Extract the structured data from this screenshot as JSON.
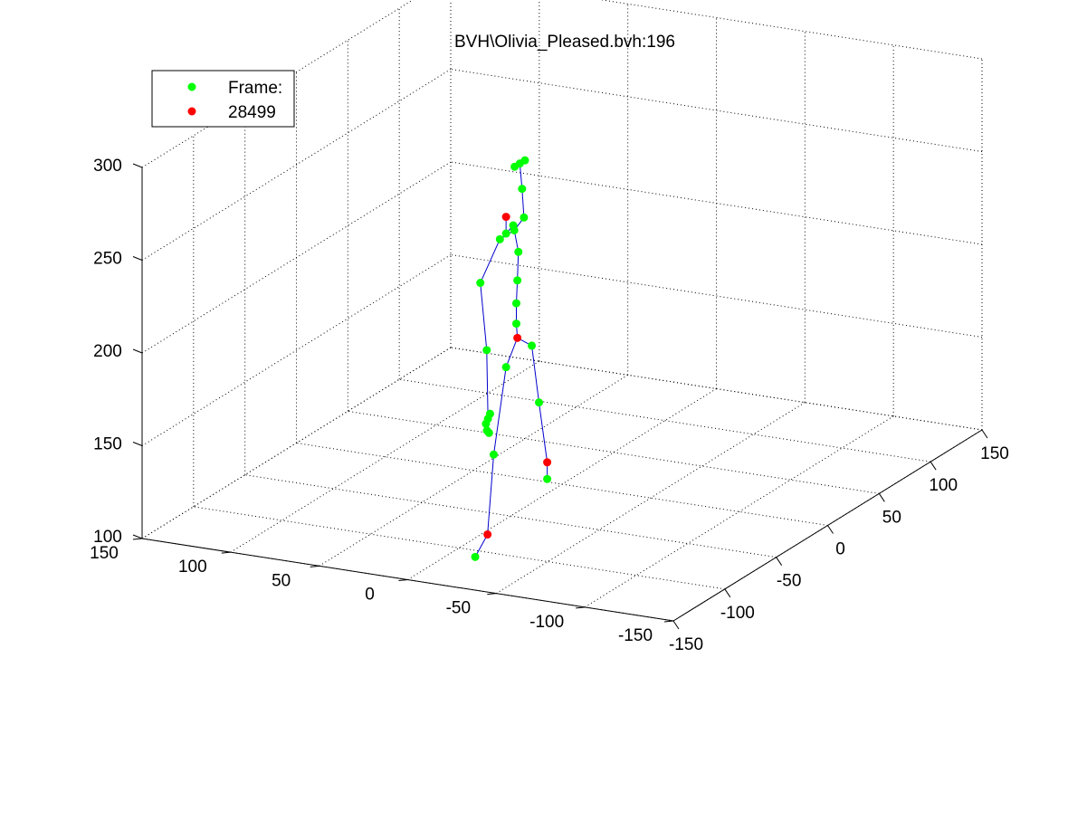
{
  "window": {
    "background": "#ffffff"
  },
  "chart_data": {
    "type": "scatter",
    "title": "BVH\\Olivia_Pleased.bvh:196",
    "xlabel": "",
    "ylabel": "",
    "zlabel": "",
    "grid": true,
    "legend_position": "top-left",
    "axes": {
      "x": {
        "lim": [
          -150,
          150
        ],
        "ticks": [
          -150,
          -100,
          -50,
          0,
          50,
          100,
          150
        ]
      },
      "y": {
        "lim": [
          -150,
          150
        ],
        "ticks": [
          -150,
          -100,
          -50,
          0,
          50,
          100,
          150
        ]
      },
      "z": {
        "lim": [
          100,
          300
        ],
        "ticks": [
          100,
          150,
          200,
          250,
          300
        ]
      }
    },
    "tick_labels": {
      "x": [
        "-150",
        "-100",
        "-50",
        "0",
        "50",
        "100",
        "150"
      ],
      "y": [
        "-150",
        "-100",
        "-50",
        "0",
        "50",
        "100",
        "150"
      ],
      "z": [
        "100",
        "150",
        "200",
        "250",
        "300"
      ]
    },
    "legend": [
      {
        "label": "Frame:",
        "color": "#00ff00"
      },
      {
        "label": "28499",
        "color": "#ff0000"
      }
    ],
    "colors": {
      "joint": "#00ff00",
      "end_effector": "#ff0000",
      "bone": "#0000cc",
      "grid": "#000000"
    },
    "series": [
      {
        "name": "Frame:",
        "color": "#00ff00",
        "points": [
          [
            -20,
            20,
            239
          ],
          [
            -13,
            20,
            241
          ],
          [
            -12,
            20,
            238
          ],
          [
            -26,
            20,
            238
          ],
          [
            6,
            25,
            238
          ],
          [
            30,
            40,
            243
          ],
          [
            40,
            50,
            250
          ],
          [
            45,
            50,
            250
          ],
          [
            50,
            50,
            250
          ],
          [
            -45,
            20,
            221
          ],
          [
            -56,
            10,
            190
          ],
          [
            -70,
            0,
            162
          ],
          [
            -72,
            0,
            160
          ],
          [
            -74,
            0,
            158
          ],
          [
            -73,
            0,
            154
          ],
          [
            -71,
            0,
            152
          ],
          [
            -8,
            20,
            225
          ],
          [
            -9,
            20,
            210
          ],
          [
            -10,
            20,
            198
          ],
          [
            -10,
            20,
            187
          ],
          [
            -20,
            20,
            167
          ],
          [
            -32,
            20,
            124
          ],
          [
            -50,
            20,
            75
          ],
          [
            5,
            20,
            170
          ],
          [
            12,
            20,
            137
          ],
          [
            20,
            20,
            93
          ]
        ]
      },
      {
        "name": "28499",
        "color": "#ff0000",
        "points": [
          [
            -20,
            20,
            248
          ],
          [
            -9,
            20,
            179
          ],
          [
            20,
            20,
            102
          ],
          [
            -38,
            20,
            83
          ]
        ]
      }
    ],
    "bones": [
      [
        [
          -20,
          20,
          248
        ],
        [
          -20,
          20,
          239
        ]
      ],
      [
        [
          -20,
          20,
          239
        ],
        [
          -13,
          20,
          241
        ]
      ],
      [
        [
          -13,
          20,
          241
        ],
        [
          -12,
          20,
          238
        ]
      ],
      [
        [
          -12,
          20,
          238
        ],
        [
          -26,
          20,
          238
        ]
      ],
      [
        [
          -12,
          20,
          238
        ],
        [
          6,
          25,
          238
        ]
      ],
      [
        [
          6,
          25,
          238
        ],
        [
          30,
          40,
          243
        ]
      ],
      [
        [
          30,
          40,
          243
        ],
        [
          45,
          50,
          250
        ]
      ],
      [
        [
          -26,
          20,
          238
        ],
        [
          -45,
          20,
          221
        ]
      ],
      [
        [
          -45,
          20,
          221
        ],
        [
          -56,
          10,
          190
        ]
      ],
      [
        [
          -56,
          10,
          190
        ],
        [
          -72,
          0,
          160
        ]
      ],
      [
        [
          -12,
          20,
          238
        ],
        [
          -8,
          20,
          225
        ]
      ],
      [
        [
          -8,
          20,
          225
        ],
        [
          -9,
          20,
          210
        ]
      ],
      [
        [
          -9,
          20,
          210
        ],
        [
          -10,
          20,
          198
        ]
      ],
      [
        [
          -10,
          20,
          198
        ],
        [
          -10,
          20,
          187
        ]
      ],
      [
        [
          -10,
          20,
          187
        ],
        [
          -9,
          20,
          179
        ]
      ],
      [
        [
          -9,
          20,
          179
        ],
        [
          -20,
          20,
          167
        ]
      ],
      [
        [
          -20,
          20,
          167
        ],
        [
          -32,
          20,
          124
        ]
      ],
      [
        [
          -32,
          20,
          124
        ],
        [
          -38,
          20,
          83
        ]
      ],
      [
        [
          -38,
          20,
          83
        ],
        [
          -50,
          20,
          75
        ]
      ],
      [
        [
          -9,
          20,
          179
        ],
        [
          5,
          20,
          170
        ]
      ],
      [
        [
          5,
          20,
          170
        ],
        [
          12,
          20,
          137
        ]
      ],
      [
        [
          12,
          20,
          137
        ],
        [
          20,
          20,
          102
        ]
      ],
      [
        [
          20,
          20,
          102
        ],
        [
          20,
          20,
          93
        ]
      ]
    ]
  }
}
